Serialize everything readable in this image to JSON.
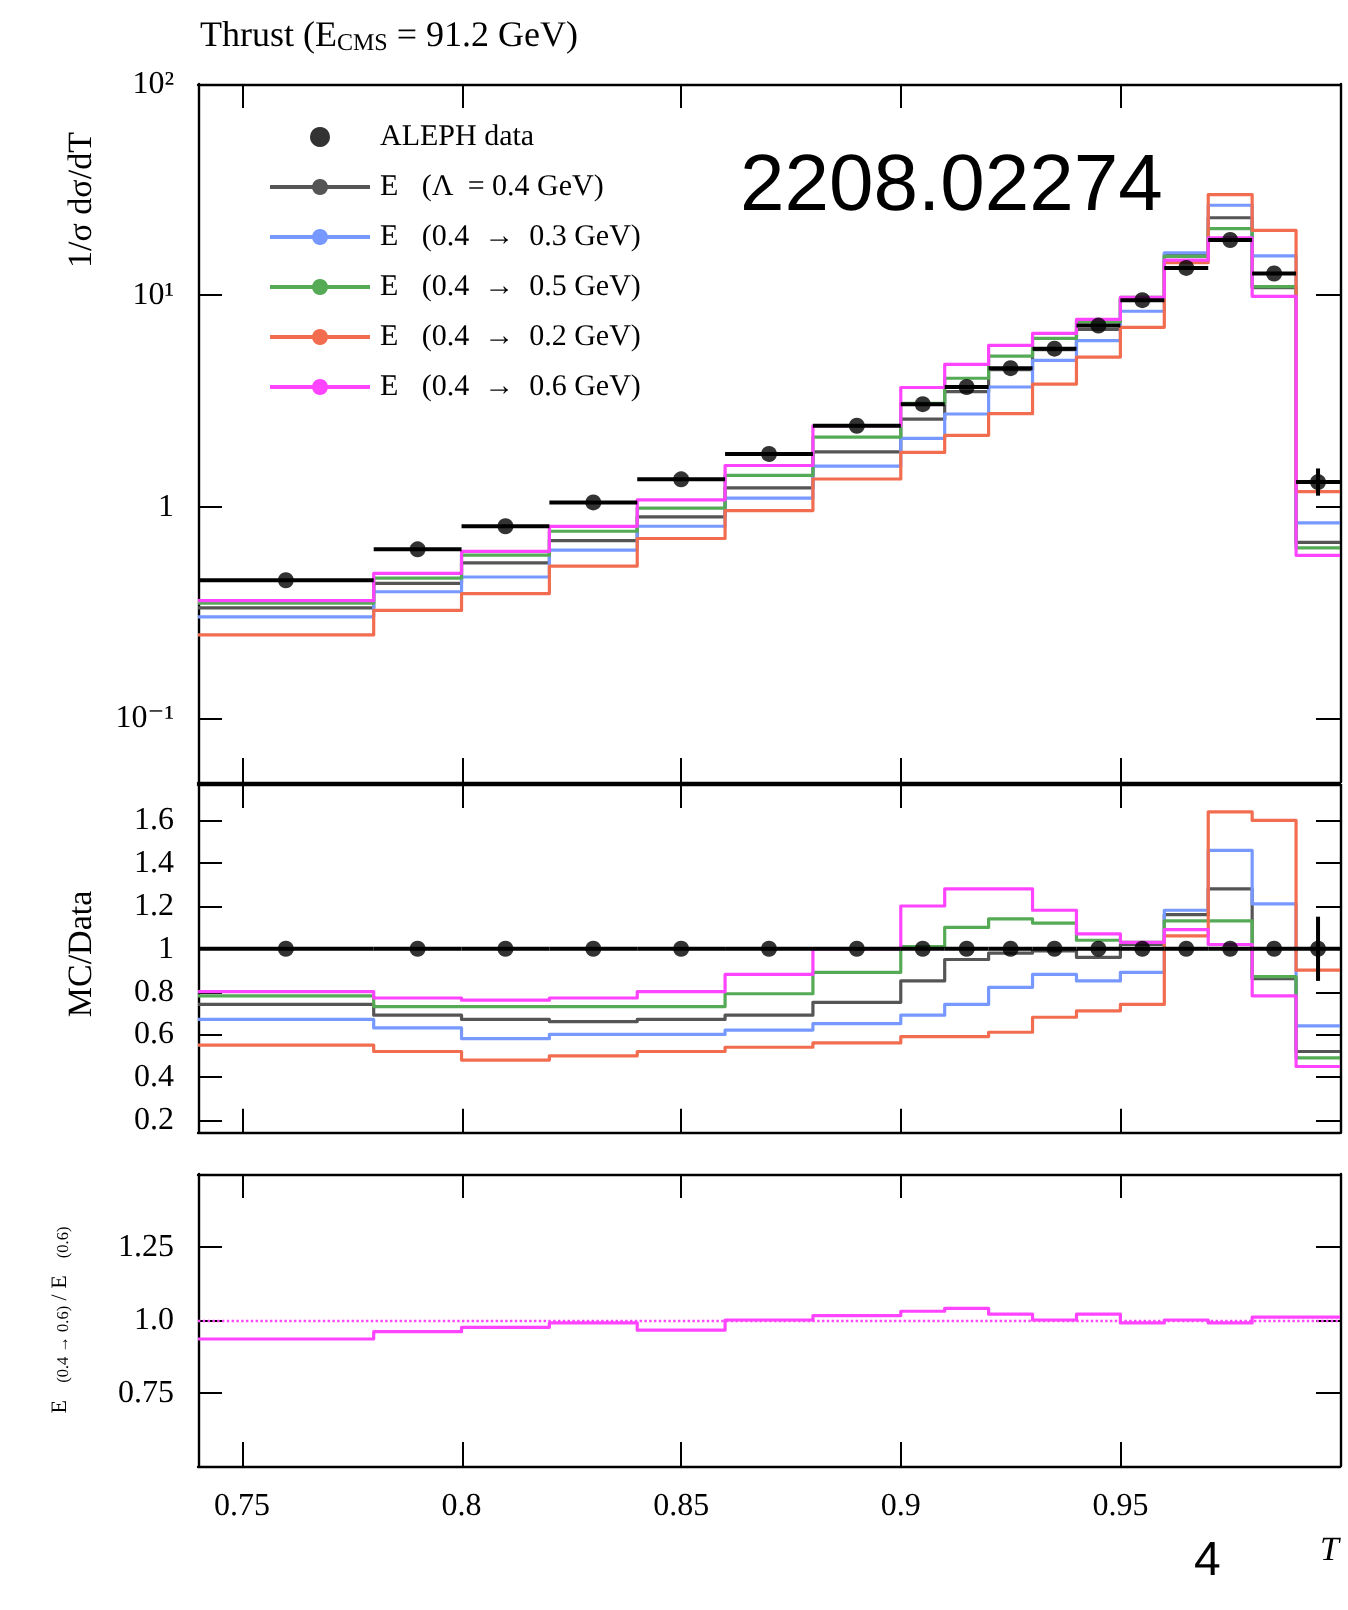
{
  "chart_data": [
    {
      "type": "histogram",
      "title": "Thrust (E$_{CMS}$ = 91.2 GeV)",
      "ylabel": "1/σ dσ/dT",
      "log": true,
      "ylim": [
        0.05,
        100
      ],
      "yticks": [
        {
          "value": 0.1,
          "label": "10⁻¹"
        },
        1,
        {
          "value": 10,
          "label": "10¹"
        },
        {
          "value": 100,
          "label": "10²"
        }
      ],
      "xlim": [
        0.74,
        1.0
      ],
      "xticks": [
        0.75,
        0.8,
        0.85,
        0.9,
        0.95
      ],
      "tick_labels": "y",
      "legend": "top left",
      "annotations": [
        "2208.02274"
      ],
      "bins": [
        0.74,
        0.78,
        0.8,
        0.82,
        0.84,
        0.86,
        0.88,
        0.9,
        0.91,
        0.92,
        0.93,
        0.94,
        0.95,
        0.96,
        0.97,
        0.98,
        0.99,
        1.0
      ],
      "series": [
        {
          "name": "ALEPH data",
          "type": "scatter",
          "color": "#000000",
          "marker": "circle",
          "x": [
            0.76,
            0.79,
            0.81,
            0.83,
            0.85,
            0.87,
            0.89,
            0.905,
            0.915,
            0.925,
            0.935,
            0.945,
            0.955,
            0.965,
            0.975,
            0.985,
            0.995
          ],
          "values": [
            0.45,
            0.63,
            0.81,
            1.05,
            1.35,
            1.78,
            2.42,
            3.06,
            3.69,
            4.53,
            5.6,
            7.2,
            9.5,
            13.5,
            18.3,
            12.7,
            1.31
          ],
          "xerrors": [
            0.02,
            0.01,
            0.01,
            0.01,
            0.01,
            0.01,
            0.01,
            0.005,
            0.005,
            0.005,
            0.005,
            0.005,
            0.005,
            0.005,
            0.005,
            0.005,
            0.005
          ],
          "errors": [
            null,
            null,
            null,
            null,
            null,
            null,
            null,
            null,
            null,
            null,
            null,
            null,
            null,
            null,
            null,
            null,
            [
              1.13,
              1.52
            ]
          ]
        },
        {
          "name": "E⃗(Λ  = 0.4 GeV)",
          "color": "#555555",
          "values": [
            0.333,
            0.435,
            0.543,
            0.693,
            0.898,
            1.23,
            1.82,
            2.6,
            3.51,
            4.46,
            5.54,
            6.91,
            9.64,
            15.7,
            23.3,
            10.9,
            0.68
          ]
        },
        {
          "name": "E⃗(0.4  →  0.3 GeV)",
          "color": "#7799ff",
          "values": [
            0.302,
            0.397,
            0.466,
            0.625,
            0.81,
            1.1,
            1.56,
            2.11,
            2.75,
            3.69,
            4.93,
            6.12,
            8.42,
            15.9,
            26.7,
            15.4,
            0.84
          ]
        },
        {
          "name": "E⃗(0.4  →  0.5 GeV)",
          "color": "#55aa55",
          "values": [
            0.351,
            0.46,
            0.591,
            0.767,
            0.986,
            1.41,
            2.14,
            3.09,
            4.06,
            5.16,
            6.27,
            7.49,
            9.79,
            15.3,
            20.7,
            11.0,
            0.64
          ]
        },
        {
          "name": "E⃗(0.4  →  0.2 GeV)",
          "color": "#f26c4f",
          "values": [
            0.248,
            0.324,
            0.389,
            0.525,
            0.709,
            0.961,
            1.355,
            1.81,
            2.18,
            2.76,
            3.81,
            5.11,
            7.07,
            14.3,
            30.0,
            20.3,
            1.18
          ]
        },
        {
          "name": "E⃗(0.4  →  0.6 GeV)",
          "color": "#ff44ff",
          "values": [
            0.36,
            0.485,
            0.616,
            0.809,
            1.08,
            1.57,
            2.42,
            3.67,
            4.72,
            5.8,
            6.61,
            7.7,
            9.79,
            14.7,
            18.7,
            9.9,
            0.59
          ]
        }
      ]
    },
    {
      "type": "histogram",
      "ylabel": "MC/Data",
      "ylim": [
        0.14,
        1.77
      ],
      "yticks": [
        0.2,
        0.4,
        0.6,
        0.8,
        1,
        1.2,
        1.4,
        1.6
      ],
      "xlim": [
        0.74,
        1.0
      ],
      "xticks": [
        0.75,
        0.8,
        0.85,
        0.9,
        0.95
      ],
      "tick_labels": "y",
      "bins": [
        0.74,
        0.78,
        0.8,
        0.82,
        0.84,
        0.86,
        0.88,
        0.9,
        0.91,
        0.92,
        0.93,
        0.94,
        0.95,
        0.96,
        0.97,
        0.98,
        0.99,
        1.0
      ],
      "series": [
        {
          "type": "scatter",
          "color": "#000000",
          "marker": "circle",
          "x": [
            0.76,
            0.79,
            0.81,
            0.83,
            0.85,
            0.87,
            0.89,
            0.905,
            0.915,
            0.925,
            0.935,
            0.945,
            0.955,
            0.965,
            0.975,
            0.985,
            0.995
          ],
          "values": [
            1,
            1,
            1,
            1,
            1,
            1,
            1,
            1,
            1,
            1,
            1,
            1,
            1,
            1,
            1,
            1,
            1
          ],
          "xerrors": [
            0.02,
            0.01,
            0.01,
            0.01,
            0.01,
            0.01,
            0.01,
            0.005,
            0.005,
            0.005,
            0.005,
            0.005,
            0.005,
            0.005,
            0.005,
            0.005,
            0.005
          ],
          "errors": [
            null,
            null,
            null,
            null,
            null,
            null,
            null,
            null,
            null,
            null,
            null,
            null,
            null,
            null,
            null,
            null,
            [
              0.85,
              1.15
            ]
          ]
        },
        {
          "color": "#555555",
          "values": [
            0.74,
            0.69,
            0.67,
            0.66,
            0.67,
            0.69,
            0.75,
            0.85,
            0.95,
            0.98,
            0.99,
            0.96,
            1.02,
            1.16,
            1.28,
            0.86,
            0.52
          ]
        },
        {
          "color": "#7799ff",
          "values": [
            0.67,
            0.63,
            0.58,
            0.6,
            0.6,
            0.62,
            0.65,
            0.69,
            0.74,
            0.82,
            0.88,
            0.85,
            0.89,
            1.18,
            1.46,
            1.21,
            0.64
          ]
        },
        {
          "color": "#55aa55",
          "values": [
            0.78,
            0.73,
            0.73,
            0.73,
            0.73,
            0.79,
            0.89,
            1.01,
            1.1,
            1.14,
            1.12,
            1.04,
            1.03,
            1.13,
            1.13,
            0.87,
            0.49
          ]
        },
        {
          "color": "#f26c4f",
          "values": [
            0.55,
            0.52,
            0.48,
            0.5,
            0.52,
            0.54,
            0.56,
            0.59,
            0.59,
            0.61,
            0.68,
            0.71,
            0.74,
            1.06,
            1.64,
            1.6,
            0.9
          ]
        },
        {
          "color": "#ff44ff",
          "values": [
            0.8,
            0.77,
            0.76,
            0.77,
            0.8,
            0.88,
            1.0,
            1.2,
            1.28,
            1.28,
            1.18,
            1.07,
            1.03,
            1.09,
            1.02,
            0.78,
            0.45
          ]
        }
      ]
    },
    {
      "type": "histogram",
      "ylabel": "E⃗$_{(0.4 → 0.6)}$ / E⃗$_{(0.6)}$",
      "xlabel": "T",
      "ylim": [
        0.5,
        1.5
      ],
      "yticks": [
        0.75,
        {
          "value": 1,
          "label": "1.0"
        },
        1.25
      ],
      "xlim": [
        0.74,
        1.0
      ],
      "xticks": [
        0.75,
        0.8,
        0.85,
        0.9,
        0.95
      ],
      "annotations": [
        "4"
      ],
      "bins": [
        0.74,
        0.78,
        0.8,
        0.82,
        0.84,
        0.86,
        0.88,
        0.9,
        0.91,
        0.92,
        0.93,
        0.94,
        0.95,
        0.96,
        0.97,
        0.98,
        0.99,
        1.0
      ],
      "ref_lines": [
        {
          "axis": "y",
          "value": 1,
          "color": "#ff44ff",
          "line_style": "dotted"
        }
      ],
      "series": [
        {
          "color": "#ff44ff",
          "values": [
            0.935,
            0.96,
            0.975,
            0.99,
            0.965,
            1.0,
            1.015,
            1.03,
            1.04,
            1.02,
            1.0,
            1.02,
            0.99,
            1.0,
            0.99,
            1.01,
            1.01
          ]
        }
      ]
    }
  ]
}
